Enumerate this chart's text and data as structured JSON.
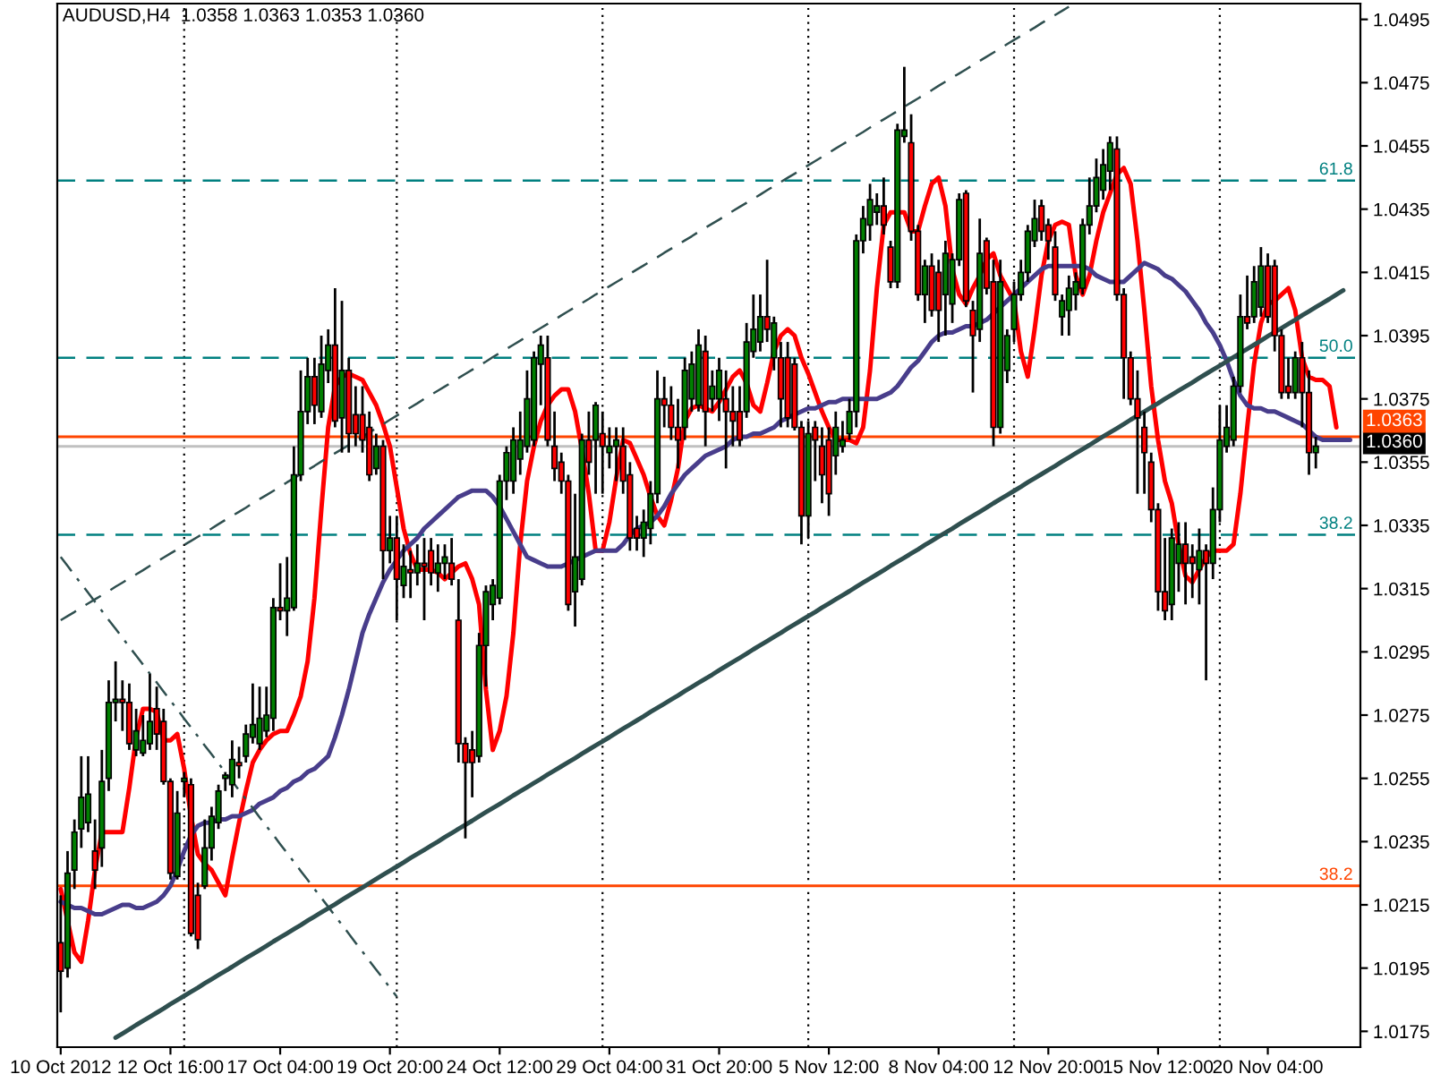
{
  "chart_data": {
    "type": "candlestick",
    "title": "AUDUSD,H4  1.0358 1.0363 1.0353 1.0360",
    "categories": [
      "10 Oct 2012",
      null,
      null,
      null,
      null,
      null,
      null,
      null,
      null,
      null,
      null,
      null,
      null,
      null,
      null,
      null,
      "12 Oct 16:00",
      null,
      null,
      null,
      null,
      null,
      null,
      null,
      null,
      null,
      null,
      null,
      null,
      null,
      null,
      null,
      "17 Oct 04:00",
      null,
      null,
      null,
      null,
      null,
      null,
      null,
      null,
      null,
      null,
      null,
      null,
      null,
      null,
      null,
      "19 Oct 20:00",
      null,
      null,
      null,
      null,
      null,
      null,
      null,
      null,
      null,
      null,
      null,
      null,
      null,
      null,
      null,
      "24 Oct 12:00",
      null,
      null,
      null,
      null,
      null,
      null,
      null,
      null,
      null,
      null,
      null,
      null,
      null,
      null,
      null,
      "29 Oct 04:00",
      null,
      null,
      null,
      null,
      null,
      null,
      null,
      null,
      null,
      null,
      null,
      null,
      null,
      null,
      null,
      "31 Oct 20:00",
      null,
      null,
      null,
      null,
      null,
      null,
      null,
      null,
      null,
      null,
      null,
      null,
      null,
      null,
      null,
      "5 Nov 12:00",
      null,
      null,
      null,
      null,
      null,
      null,
      null,
      null,
      null,
      null,
      null,
      null,
      null,
      null,
      null,
      "8 Nov 04:00",
      null,
      null,
      null,
      null,
      null,
      null,
      null,
      null,
      null,
      null,
      null,
      null,
      null,
      null,
      null,
      "12 Nov 20:00",
      null,
      null,
      null,
      null,
      null,
      null,
      null,
      null,
      null,
      null,
      null,
      null,
      null,
      null,
      null,
      "15 Nov 12:00",
      null,
      null,
      null,
      null,
      null,
      null,
      null,
      null,
      null,
      null,
      null,
      null,
      null,
      null,
      null,
      "20 Nov 04:00",
      null,
      null,
      null,
      null,
      null,
      null,
      null,
      null,
      null,
      null,
      null,
      null,
      null
    ],
    "ohlc": [
      [
        1.0203,
        1.0218,
        1.0181,
        1.0194
      ],
      [
        1.0195,
        1.0232,
        1.0192,
        1.0225
      ],
      [
        1.0226,
        1.0242,
        1.022,
        1.0238
      ],
      [
        1.0239,
        1.0262,
        1.0233,
        1.0249
      ],
      [
        1.0241,
        1.0262,
        1.0238,
        1.025
      ],
      [
        1.0232,
        1.0242,
        1.022,
        1.0226
      ],
      [
        1.0233,
        1.0264,
        1.0227,
        1.0254
      ],
      [
        1.0255,
        1.0286,
        1.0251,
        1.0279
      ],
      [
        1.0279,
        1.0292,
        1.0273,
        1.028
      ],
      [
        1.028,
        1.0286,
        1.027,
        1.0279
      ],
      [
        1.0279,
        1.0285,
        1.0264,
        1.0266
      ],
      [
        1.0264,
        1.0277,
        1.0262,
        1.027
      ],
      [
        1.0263,
        1.0275,
        1.0262,
        1.0267
      ],
      [
        1.0266,
        1.0288,
        1.0264,
        1.0273
      ],
      [
        1.0277,
        1.0284,
        1.0264,
        1.0269
      ],
      [
        1.0273,
        1.0277,
        1.0253,
        1.0254
      ],
      [
        1.0254,
        1.0255,
        1.0223,
        1.0225
      ],
      [
        1.0224,
        1.0251,
        1.0223,
        1.0244
      ],
      [
        1.0254,
        1.0257,
        1.0249,
        1.0255
      ],
      [
        1.0253,
        1.0255,
        1.0205,
        1.0206
      ],
      [
        1.0218,
        1.0222,
        1.0201,
        1.0204
      ],
      [
        1.0221,
        1.0242,
        1.022,
        1.0233
      ],
      [
        1.0233,
        1.0246,
        1.0229,
        1.0243
      ],
      [
        1.0241,
        1.0253,
        1.0239,
        1.0251
      ],
      [
        1.0255,
        1.0257,
        1.0251,
        1.0256
      ],
      [
        1.0253,
        1.0267,
        1.0249,
        1.0261
      ],
      [
        1.026,
        1.0265,
        1.0255,
        1.0259
      ],
      [
        1.0262,
        1.0272,
        1.026,
        1.0269
      ],
      [
        1.0268,
        1.0285,
        1.0266,
        1.0272
      ],
      [
        1.0266,
        1.0284,
        1.0264,
        1.0274
      ],
      [
        1.027,
        1.0284,
        1.0268,
        1.0275
      ],
      [
        1.0274,
        1.0312,
        1.027,
        1.0309
      ],
      [
        1.0309,
        1.0323,
        1.0305,
        1.0308
      ],
      [
        1.0308,
        1.0325,
        1.03,
        1.0312
      ],
      [
        1.0309,
        1.036,
        1.0308,
        1.0351
      ],
      [
        1.0351,
        1.0384,
        1.0349,
        1.0371
      ],
      [
        1.0371,
        1.0388,
        1.0367,
        1.0382
      ],
      [
        1.0382,
        1.0388,
        1.0367,
        1.0373
      ],
      [
        1.0371,
        1.0395,
        1.0369,
        1.0386
      ],
      [
        1.0384,
        1.0397,
        1.038,
        1.0392
      ],
      [
        1.0392,
        1.041,
        1.0366,
        1.0368
      ],
      [
        1.0369,
        1.0406,
        1.0358,
        1.0384
      ],
      [
        1.0384,
        1.0388,
        1.0358,
        1.0364
      ],
      [
        1.037,
        1.0379,
        1.036,
        1.0364
      ],
      [
        1.037,
        1.0379,
        1.0358,
        1.0362
      ],
      [
        1.0366,
        1.0371,
        1.0349,
        1.0351
      ],
      [
        1.0353,
        1.0364,
        1.0351,
        1.036
      ],
      [
        1.036,
        1.0362,
        1.0318,
        1.0327
      ],
      [
        1.0327,
        1.0338,
        1.0323,
        1.0331
      ],
      [
        1.0331,
        1.0338,
        1.0305,
        1.0318
      ],
      [
        1.0316,
        1.0329,
        1.0312,
        1.0322
      ],
      [
        1.0321,
        1.0327,
        1.0312,
        1.032
      ],
      [
        1.032,
        1.0329,
        1.0316,
        1.0323
      ],
      [
        1.0323,
        1.0331,
        1.0305,
        1.0322
      ],
      [
        1.0327,
        1.0331,
        1.0316,
        1.032
      ],
      [
        1.032,
        1.0329,
        1.0314,
        1.0323
      ],
      [
        1.0323,
        1.0329,
        1.0318,
        1.0325
      ],
      [
        1.0323,
        1.0331,
        1.0316,
        1.0318
      ],
      [
        1.0305,
        1.0318,
        1.026,
        1.0266
      ],
      [
        1.0266,
        1.0268,
        1.0236,
        1.026
      ],
      [
        1.0264,
        1.027,
        1.0249,
        1.026
      ],
      [
        1.0262,
        1.0301,
        1.026,
        1.0297
      ],
      [
        1.0297,
        1.0316,
        1.0284,
        1.0314
      ],
      [
        1.031,
        1.0318,
        1.0305,
        1.0316
      ],
      [
        1.0312,
        1.0351,
        1.031,
        1.0349
      ],
      [
        1.0349,
        1.036,
        1.0343,
        1.0358
      ],
      [
        1.0349,
        1.0366,
        1.0345,
        1.0362
      ],
      [
        1.0356,
        1.0371,
        1.0351,
        1.0362
      ],
      [
        1.036,
        1.0384,
        1.0358,
        1.0375
      ],
      [
        1.0362,
        1.039,
        1.036,
        1.0388
      ],
      [
        1.0386,
        1.0395,
        1.0373,
        1.0392
      ],
      [
        1.0388,
        1.0395,
        1.036,
        1.0362
      ],
      [
        1.036,
        1.0371,
        1.0349,
        1.0353
      ],
      [
        1.0355,
        1.0358,
        1.0345,
        1.0349
      ],
      [
        1.0349,
        1.0351,
        1.0308,
        1.031
      ],
      [
        1.0314,
        1.0345,
        1.0303,
        1.0325
      ],
      [
        1.0318,
        1.0364,
        1.0316,
        1.0362
      ],
      [
        1.0362,
        1.0371,
        1.0351,
        1.0355
      ],
      [
        1.0362,
        1.0374,
        1.0345,
        1.0373
      ],
      [
        1.0364,
        1.0371,
        1.0345,
        1.036
      ],
      [
        1.0358,
        1.0366,
        1.0353,
        1.036
      ],
      [
        1.036,
        1.0366,
        1.0349,
        1.0362
      ],
      [
        1.036,
        1.0366,
        1.0345,
        1.0349
      ],
      [
        1.0351,
        1.0355,
        1.0327,
        1.0331
      ],
      [
        1.0334,
        1.0338,
        1.0327,
        1.0331
      ],
      [
        1.0331,
        1.034,
        1.0325,
        1.0336
      ],
      [
        1.0334,
        1.0349,
        1.0329,
        1.0345
      ],
      [
        1.0345,
        1.0384,
        1.0342,
        1.0375
      ],
      [
        1.0375,
        1.0382,
        1.0366,
        1.0373
      ],
      [
        1.0373,
        1.0379,
        1.0362,
        1.0366
      ],
      [
        1.0366,
        1.0375,
        1.0353,
        1.0362
      ],
      [
        1.0366,
        1.0388,
        1.0362,
        1.0384
      ],
      [
        1.0375,
        1.039,
        1.0371,
        1.0386
      ],
      [
        1.0373,
        1.0397,
        1.0371,
        1.0392
      ],
      [
        1.039,
        1.0395,
        1.036,
        1.0371
      ],
      [
        1.0375,
        1.0384,
        1.0371,
        1.0379
      ],
      [
        1.0375,
        1.0388,
        1.0368,
        1.0384
      ],
      [
        1.0375,
        1.0384,
        1.0353,
        1.0371
      ],
      [
        1.0371,
        1.0379,
        1.036,
        1.0368
      ],
      [
        1.0371,
        1.0379,
        1.036,
        1.0362
      ],
      [
        1.0371,
        1.0399,
        1.0369,
        1.0393
      ],
      [
        1.039,
        1.0408,
        1.0388,
        1.0397
      ],
      [
        1.0393,
        1.0408,
        1.039,
        1.0401
      ],
      [
        1.0401,
        1.0419,
        1.0393,
        1.0397
      ],
      [
        1.0388,
        1.0401,
        1.0384,
        1.0399
      ],
      [
        1.0388,
        1.0393,
        1.0366,
        1.0375
      ],
      [
        1.0388,
        1.0393,
        1.0366,
        1.0369
      ],
      [
        1.0386,
        1.0388,
        1.0365,
        1.0366
      ],
      [
        1.0366,
        1.0368,
        1.0329,
        1.0338
      ],
      [
        1.0338,
        1.0368,
        1.0331,
        1.0364
      ],
      [
        1.0366,
        1.0368,
        1.0349,
        1.0362
      ],
      [
        1.036,
        1.0366,
        1.0342,
        1.0351
      ],
      [
        1.0362,
        1.0366,
        1.0338,
        1.0345
      ],
      [
        1.0357,
        1.0371,
        1.0351,
        1.0366
      ],
      [
        1.036,
        1.0368,
        1.0358,
        1.0362
      ],
      [
        1.0364,
        1.0375,
        1.0362,
        1.0371
      ],
      [
        1.0371,
        1.0427,
        1.0366,
        1.0425
      ],
      [
        1.0425,
        1.0436,
        1.0421,
        1.0432
      ],
      [
        1.043,
        1.0443,
        1.0425,
        1.0438
      ],
      [
        1.0434,
        1.044,
        1.043,
        1.0436
      ],
      [
        1.0436,
        1.0445,
        1.0427,
        1.043
      ],
      [
        1.0423,
        1.0425,
        1.041,
        1.0412
      ],
      [
        1.0412,
        1.0462,
        1.041,
        1.046
      ],
      [
        1.0458,
        1.048,
        1.0456,
        1.046
      ],
      [
        1.0456,
        1.0465,
        1.0425,
        1.0428
      ],
      [
        1.0428,
        1.043,
        1.0406,
        1.0408
      ],
      [
        1.0408,
        1.0419,
        1.0399,
        1.0417
      ],
      [
        1.0417,
        1.0421,
        1.0401,
        1.0403
      ],
      [
        1.0415,
        1.0419,
        1.0393,
        1.0403
      ],
      [
        1.0408,
        1.0425,
        1.0395,
        1.0421
      ],
      [
        1.0405,
        1.0421,
        1.0399,
        1.0419
      ],
      [
        1.0419,
        1.044,
        1.0417,
        1.0438
      ],
      [
        1.044,
        1.0441,
        1.0404,
        1.0406
      ],
      [
        1.0403,
        1.0406,
        1.0377,
        1.0395
      ],
      [
        1.0397,
        1.0432,
        1.0393,
        1.0421
      ],
      [
        1.0425,
        1.0426,
        1.0408,
        1.041
      ],
      [
        1.0412,
        1.0419,
        1.036,
        1.0366
      ],
      [
        1.0366,
        1.0419,
        1.0364,
        1.0412
      ],
      [
        1.0384,
        1.0397,
        1.038,
        1.0395
      ],
      [
        1.0397,
        1.0412,
        1.0393,
        1.0408
      ],
      [
        1.0408,
        1.0419,
        1.0406,
        1.0415
      ],
      [
        1.0415,
        1.043,
        1.0412,
        1.0428
      ],
      [
        1.0425,
        1.0438,
        1.0423,
        1.0432
      ],
      [
        1.0436,
        1.0438,
        1.0425,
        1.0428
      ],
      [
        1.043,
        1.0432,
        1.0419,
        1.0425
      ],
      [
        1.0423,
        1.0428,
        1.0406,
        1.0408
      ],
      [
        1.0401,
        1.0408,
        1.0395,
        1.0406
      ],
      [
        1.0403,
        1.0414,
        1.0395,
        1.041
      ],
      [
        1.0408,
        1.0415,
        1.0403,
        1.0412
      ],
      [
        1.041,
        1.0432,
        1.0408,
        1.043
      ],
      [
        1.043,
        1.0445,
        1.0427,
        1.0436
      ],
      [
        1.0436,
        1.0451,
        1.0434,
        1.0445
      ],
      [
        1.0441,
        1.0454,
        1.0438,
        1.0449
      ],
      [
        1.0447,
        1.0458,
        1.0441,
        1.0456
      ],
      [
        1.0454,
        1.0458,
        1.0406,
        1.0408
      ],
      [
        1.0408,
        1.041,
        1.0375,
        1.0388
      ],
      [
        1.0388,
        1.039,
        1.0373,
        1.0375
      ],
      [
        1.0375,
        1.0384,
        1.0345,
        1.0369
      ],
      [
        1.0366,
        1.0371,
        1.0345,
        1.0358
      ],
      [
        1.0355,
        1.0358,
        1.0336,
        1.034
      ],
      [
        1.034,
        1.0342,
        1.0308,
        1.0314
      ],
      [
        1.0314,
        1.0331,
        1.0305,
        1.0308
      ],
      [
        1.031,
        1.0334,
        1.0305,
        1.0331
      ],
      [
        1.0323,
        1.0336,
        1.0314,
        1.0329
      ],
      [
        1.0329,
        1.0336,
        1.031,
        1.0323
      ],
      [
        1.0325,
        1.0329,
        1.0312,
        1.0323
      ],
      [
        1.0321,
        1.0334,
        1.031,
        1.0327
      ],
      [
        1.0327,
        1.0329,
        1.0286,
        1.0323
      ],
      [
        1.0323,
        1.0347,
        1.0318,
        1.034
      ],
      [
        1.034,
        1.0373,
        1.0336,
        1.0362
      ],
      [
        1.036,
        1.0373,
        1.0358,
        1.0366
      ],
      [
        1.0362,
        1.0382,
        1.036,
        1.0379
      ],
      [
        1.0379,
        1.0408,
        1.0377,
        1.0401
      ],
      [
        1.0401,
        1.0414,
        1.0397,
        1.0399
      ],
      [
        1.0401,
        1.0417,
        1.0399,
        1.0412
      ],
      [
        1.0404,
        1.0423,
        1.0401,
        1.0417
      ],
      [
        1.0417,
        1.0421,
        1.0399,
        1.0401
      ],
      [
        1.0417,
        1.0419,
        1.039,
        1.0395
      ],
      [
        1.0395,
        1.0397,
        1.0375,
        1.0377
      ],
      [
        1.0379,
        1.0388,
        1.0375,
        1.0377
      ],
      [
        1.0377,
        1.039,
        1.0375,
        1.0388
      ],
      [
        1.0388,
        1.0393,
        1.0366,
        1.0377
      ],
      [
        1.0377,
        1.0384,
        1.0351,
        1.0358
      ],
      [
        1.0358,
        1.0363,
        1.0353,
        1.036
      ],
      null,
      null,
      null,
      null,
      null,
      null
    ],
    "series": [
      {
        "type": "line",
        "color": "#ff0000",
        "line_style": "solid",
        "values": [
          1.022,
          1.021,
          1.02,
          1.0197,
          1.021,
          1.0226,
          1.0238,
          1.0238,
          1.0238,
          1.0238,
          1.0252,
          1.0268,
          1.0277,
          1.0277,
          1.0276,
          1.0267,
          1.0267,
          1.0269,
          1.0258,
          1.0243,
          1.0231,
          1.0228,
          1.0226,
          1.0222,
          1.0218,
          1.023,
          1.0241,
          1.0251,
          1.026,
          1.0264,
          1.0267,
          1.0269,
          1.027,
          1.027,
          1.0275,
          1.0281,
          1.0292,
          1.0312,
          1.034,
          1.0366,
          1.0379,
          1.0382,
          1.0383,
          1.0382,
          1.0381,
          1.0377,
          1.0373,
          1.0367,
          1.036,
          1.0347,
          1.0334,
          1.0326,
          1.0321,
          1.0321,
          1.0321,
          1.032,
          1.0318,
          1.032,
          1.0322,
          1.0323,
          1.0318,
          1.031,
          1.0283,
          1.0264,
          1.027,
          1.0281,
          1.0301,
          1.0329,
          1.0349,
          1.036,
          1.0368,
          1.0373,
          1.0376,
          1.0378,
          1.0378,
          1.0371,
          1.0359,
          1.0345,
          1.0327,
          1.0327,
          1.0336,
          1.035,
          1.0362,
          1.0361,
          1.0356,
          1.0351,
          1.0344,
          1.0338,
          1.0335,
          1.0343,
          1.0353,
          1.0368,
          1.0372,
          1.0373,
          1.0372,
          1.0371,
          1.0374,
          1.0378,
          1.0382,
          1.0384,
          1.038,
          1.0373,
          1.0371,
          1.038,
          1.039,
          1.0395,
          1.0397,
          1.0395,
          1.0388,
          1.0383,
          1.0377,
          1.0371,
          1.0366,
          1.0362,
          1.0362,
          1.0362,
          1.0361,
          1.0366,
          1.0384,
          1.041,
          1.043,
          1.0434,
          1.0434,
          1.0434,
          1.0428,
          1.0428,
          1.0436,
          1.0443,
          1.0445,
          1.0436,
          1.0416,
          1.0408,
          1.0405,
          1.041,
          1.0414,
          1.0419,
          1.0421,
          1.0414,
          1.041,
          1.0406,
          1.039,
          1.0382,
          1.0397,
          1.0414,
          1.0425,
          1.043,
          1.0431,
          1.043,
          1.0414,
          1.0408,
          1.0414,
          1.0425,
          1.0434,
          1.044,
          1.0446,
          1.0448,
          1.0443,
          1.0425,
          1.0403,
          1.0379,
          1.0362,
          1.0349,
          1.0342,
          1.0329,
          1.0319,
          1.0317,
          1.0321,
          1.0325,
          1.0327,
          1.0327,
          1.0327,
          1.0329,
          1.0345,
          1.0366,
          1.0386,
          1.0399,
          1.0405,
          1.0406,
          1.0408,
          1.041,
          1.0403,
          1.0388,
          1.0382,
          1.0381,
          1.0381,
          1.0379,
          1.0366,
          null,
          null,
          null
        ]
      },
      {
        "type": "line",
        "color": "#483d8b",
        "line_style": "solid",
        "values": [
          1.0216,
          1.0215,
          1.0214,
          1.0214,
          1.0213,
          1.0212,
          1.0212,
          1.0213,
          1.0214,
          1.0215,
          1.0215,
          1.0214,
          1.0214,
          1.0215,
          1.0216,
          1.0218,
          1.0221,
          1.0226,
          1.0232,
          1.0237,
          1.024,
          1.0241,
          1.0241,
          1.0242,
          1.0242,
          1.0243,
          1.0243,
          1.0244,
          1.0245,
          1.0247,
          1.0248,
          1.0249,
          1.0251,
          1.0252,
          1.0254,
          1.0255,
          1.0257,
          1.0258,
          1.026,
          1.0262,
          1.0268,
          1.0275,
          1.0283,
          1.0292,
          1.0301,
          1.0307,
          1.0312,
          1.0317,
          1.0321,
          1.0324,
          1.0327,
          1.0329,
          1.0331,
          1.0334,
          1.0336,
          1.0338,
          1.034,
          1.0342,
          1.0344,
          1.0345,
          1.0346,
          1.0346,
          1.0346,
          1.0344,
          1.0341,
          1.0337,
          1.0333,
          1.0329,
          1.0325,
          1.0324,
          1.0323,
          1.0322,
          1.0322,
          1.0322,
          1.0323,
          1.0324,
          1.0325,
          1.0326,
          1.0327,
          1.0327,
          1.0327,
          1.0327,
          1.0329,
          1.0332,
          1.0334,
          1.0335,
          1.0336,
          1.0338,
          1.0341,
          1.0345,
          1.0348,
          1.0351,
          1.0353,
          1.0355,
          1.0357,
          1.0358,
          1.0359,
          1.036,
          1.0362,
          1.0363,
          1.0363,
          1.0364,
          1.0364,
          1.0365,
          1.0366,
          1.0368,
          1.0369,
          1.037,
          1.0371,
          1.0372,
          1.0372,
          1.0373,
          1.0374,
          1.0374,
          1.0375,
          1.0375,
          1.0375,
          1.0375,
          1.0375,
          1.0375,
          1.0376,
          1.0377,
          1.0379,
          1.0382,
          1.0385,
          1.0387,
          1.039,
          1.0393,
          1.0395,
          1.0396,
          1.0396,
          1.0397,
          1.0398,
          1.0398,
          1.0399,
          1.04,
          1.0402,
          1.0404,
          1.0406,
          1.0408,
          1.041,
          1.0412,
          1.0414,
          1.0416,
          1.0417,
          1.0417,
          1.0417,
          1.0417,
          1.0417,
          1.0417,
          1.0416,
          1.0414,
          1.0413,
          1.0412,
          1.0412,
          1.0412,
          1.0414,
          1.0416,
          1.0418,
          1.0417,
          1.0416,
          1.0414,
          1.0413,
          1.0411,
          1.0409,
          1.0406,
          1.0403,
          1.0399,
          1.0396,
          1.0392,
          1.0387,
          1.0381,
          1.0376,
          1.0373,
          1.0372,
          1.0372,
          1.0371,
          1.0371,
          1.037,
          1.0369,
          1.0368,
          1.0367,
          1.0365,
          1.0363,
          1.0362,
          1.0362,
          1.0362,
          1.0362,
          1.0362,
          null
        ]
      },
      {
        "type": "line",
        "color": "#2f4f4f",
        "line_style": "solid",
        "values": [
          null,
          null,
          null,
          null,
          null,
          null,
          null,
          null,
          1.0173,
          1.01743,
          1.01756,
          1.0177,
          1.01783,
          1.01796,
          1.01809,
          1.01822,
          1.01836,
          1.01849,
          1.01862,
          1.01875,
          1.01888,
          1.01902,
          1.01915,
          1.01928,
          1.01941,
          1.01954,
          1.01968,
          1.01981,
          1.01994,
          1.02007,
          1.0202,
          1.02034,
          1.02047,
          1.0206,
          1.02073,
          1.02086,
          1.021,
          1.02113,
          1.02126,
          1.02139,
          1.02152,
          1.02166,
          1.02179,
          1.02192,
          1.02205,
          1.02218,
          1.02232,
          1.02245,
          1.02258,
          1.02271,
          1.02284,
          1.02298,
          1.02311,
          1.02324,
          1.02337,
          1.0235,
          1.02364,
          1.02377,
          1.0239,
          1.02403,
          1.02416,
          1.0243,
          1.02443,
          1.02456,
          1.02469,
          1.02482,
          1.02496,
          1.02509,
          1.02522,
          1.02535,
          1.02548,
          1.02562,
          1.02575,
          1.02588,
          1.02601,
          1.02614,
          1.02628,
          1.02641,
          1.02654,
          1.02667,
          1.0268,
          1.02694,
          1.02707,
          1.0272,
          1.02733,
          1.02746,
          1.0276,
          1.02773,
          1.02786,
          1.02799,
          1.02812,
          1.02826,
          1.02839,
          1.02852,
          1.02865,
          1.02878,
          1.02892,
          1.02905,
          1.02918,
          1.02931,
          1.02944,
          1.02958,
          1.02971,
          1.02984,
          1.02997,
          1.0301,
          1.03024,
          1.03037,
          1.0305,
          1.03063,
          1.03076,
          1.0309,
          1.03103,
          1.03116,
          1.03129,
          1.03142,
          1.03156,
          1.03169,
          1.03182,
          1.03195,
          1.03208,
          1.03222,
          1.03235,
          1.03248,
          1.03261,
          1.03274,
          1.03288,
          1.03301,
          1.03314,
          1.03327,
          1.0334,
          1.03354,
          1.03367,
          1.0338,
          1.03393,
          1.03406,
          1.0342,
          1.03433,
          1.03446,
          1.03459,
          1.03472,
          1.03486,
          1.03499,
          1.03512,
          1.03525,
          1.03538,
          1.03552,
          1.03565,
          1.03578,
          1.03591,
          1.03604,
          1.03618,
          1.03631,
          1.03644,
          1.03657,
          1.0367,
          1.03684,
          1.03697,
          1.0371,
          1.03723,
          1.03736,
          1.0375,
          1.03763,
          1.03776,
          1.03789,
          1.03802,
          1.03816,
          1.03829,
          1.03842,
          1.03855,
          1.03868,
          1.03882,
          1.03895,
          1.03908,
          1.03921,
          1.03934,
          1.03948,
          1.03961,
          1.03974,
          1.03987,
          1.04,
          1.04014,
          1.04027,
          1.0404,
          1.04053,
          1.04066,
          1.0408,
          1.04093,
          null,
          null
        ]
      },
      {
        "type": "line",
        "color": "#2f4f4f",
        "line_style": "dashed",
        "values": [
          1.0305,
          1.03063,
          1.03076,
          1.0309,
          1.03103,
          1.03116,
          1.03129,
          1.03142,
          1.03156,
          1.03169,
          1.03182,
          1.03195,
          1.03208,
          1.03222,
          1.03235,
          1.03248,
          1.03261,
          1.03274,
          1.03288,
          1.03301,
          1.03314,
          1.03327,
          1.0334,
          1.03354,
          1.03367,
          1.0338,
          1.03393,
          1.03406,
          1.0342,
          1.03433,
          1.03446,
          1.03459,
          1.03472,
          1.03486,
          1.03499,
          1.03512,
          1.03525,
          1.03538,
          1.03552,
          1.03565,
          1.03578,
          1.03591,
          1.03604,
          1.03618,
          1.03631,
          1.03644,
          1.03657,
          1.0367,
          1.03684,
          1.03697,
          1.0371,
          1.03723,
          1.03736,
          1.0375,
          1.03763,
          1.03776,
          1.03789,
          1.03802,
          1.03816,
          1.03829,
          1.03842,
          1.03855,
          1.03868,
          1.03882,
          1.03895,
          1.03908,
          1.03921,
          1.03934,
          1.03948,
          1.03961,
          1.03974,
          1.03987,
          1.04,
          1.04014,
          1.04027,
          1.0404,
          1.04053,
          1.04066,
          1.0408,
          1.04093,
          1.04106,
          1.04119,
          1.04132,
          1.04146,
          1.04159,
          1.04172,
          1.04185,
          1.04198,
          1.04212,
          1.04225,
          1.04238,
          1.04251,
          1.04264,
          1.04278,
          1.04291,
          1.04304,
          1.04317,
          1.0433,
          1.04344,
          1.04357,
          1.0437,
          1.04383,
          1.04396,
          1.0441,
          1.04423,
          1.04436,
          1.04449,
          1.04462,
          1.04476,
          1.04489,
          1.04502,
          1.04515,
          1.04528,
          1.04542,
          1.04555,
          1.04568,
          1.04581,
          1.04594,
          1.04608,
          1.04621,
          1.04634,
          1.04647,
          1.0466,
          1.04674,
          1.04687,
          1.047,
          1.04713,
          1.04726,
          1.0474,
          1.04753,
          1.04766,
          1.04779,
          1.04792,
          1.04806,
          1.04819,
          1.04832,
          1.04845,
          1.04858,
          1.04872,
          1.04885,
          1.04898,
          1.04911,
          1.04924,
          1.04938,
          1.04951,
          1.04964,
          1.04977,
          1.0499,
          null,
          null,
          null,
          null,
          null,
          null,
          null,
          null,
          null,
          null,
          null,
          null,
          null,
          null,
          null,
          null,
          null,
          null,
          null,
          null,
          null,
          null,
          null,
          null,
          null,
          null,
          null,
          null,
          null,
          null,
          null,
          null,
          null,
          null,
          null,
          null,
          null,
          null,
          null,
          null,
          null,
          null
        ]
      },
      {
        "type": "line",
        "color": "#2f4f4f",
        "line_style": "dashdot",
        "values": [
          1.0325,
          1.03222,
          1.03193,
          1.03165,
          1.03137,
          1.03108,
          1.0308,
          1.03051,
          1.03023,
          1.02995,
          1.02966,
          1.02938,
          1.0291,
          1.02881,
          1.02853,
          1.02824,
          1.02796,
          1.02768,
          1.02739,
          1.02711,
          1.02683,
          1.02654,
          1.02626,
          1.02598,
          1.02569,
          1.02541,
          1.02512,
          1.02484,
          1.02456,
          1.02427,
          1.02399,
          1.02371,
          1.02342,
          1.02314,
          1.02286,
          1.02257,
          1.02229,
          1.022,
          1.02172,
          1.02144,
          1.02115,
          1.02087,
          1.02059,
          1.0203,
          1.02002,
          1.01973,
          1.01945,
          1.01917,
          1.01888,
          1.0186,
          null,
          null,
          null,
          null,
          null,
          null,
          null,
          null,
          null,
          null,
          null,
          null,
          null,
          null,
          null,
          null,
          null,
          null,
          null,
          null,
          null,
          null,
          null,
          null,
          null,
          null,
          null,
          null,
          null,
          null,
          null,
          null,
          null,
          null,
          null,
          null,
          null,
          null,
          null,
          null,
          null,
          null,
          null,
          null,
          null,
          null,
          null,
          null,
          null,
          null,
          null,
          null,
          null,
          null,
          null,
          null,
          null,
          null,
          null,
          null,
          null,
          null,
          null,
          null,
          null,
          null,
          null,
          null,
          null,
          null,
          null,
          null,
          null,
          null,
          null,
          null,
          null,
          null,
          null,
          null,
          null,
          null,
          null,
          null,
          null,
          null,
          null,
          null,
          null,
          null,
          null,
          null,
          null,
          null,
          null,
          null,
          null,
          null,
          null,
          null,
          null,
          null,
          null,
          null,
          null,
          null,
          null,
          null,
          null,
          null,
          null,
          null,
          null,
          null,
          null,
          null,
          null,
          null,
          null,
          null,
          null,
          null,
          null,
          null,
          null,
          null,
          null,
          null,
          null,
          null,
          null,
          null,
          null,
          null,
          null,
          null,
          null,
          null,
          null,
          null
        ]
      }
    ],
    "ylim": [
      1.017,
      1.05
    ],
    "yticks": [
      1.0175,
      1.0195,
      1.0215,
      1.0235,
      1.0255,
      1.0275,
      1.0295,
      1.0315,
      1.0335,
      1.0355,
      1.0375,
      1.0395,
      1.0415,
      1.0435,
      1.0455,
      1.0475,
      1.0495
    ],
    "ref_lines": [
      {
        "axis": "y",
        "value": 1.0444,
        "color": "#008080",
        "line_style": "dashed"
      },
      {
        "axis": "y",
        "value": 1.0388,
        "color": "#008080",
        "line_style": "dashed"
      },
      {
        "axis": "y",
        "value": 1.0332,
        "color": "#008080",
        "line_style": "dashed"
      },
      {
        "axis": "y",
        "value": 1.0221,
        "color": "#ff4500",
        "line_style": "solid"
      },
      {
        "axis": "y",
        "value": 1.036,
        "label": "1.0360",
        "color": "#c0c0c0",
        "line_style": "solid"
      },
      {
        "axis": "y",
        "value": 1.0363,
        "label": "1.0363",
        "color": "#ff4500",
        "line_style": "solid"
      }
    ],
    "annotations": [
      {
        "text": "61.8",
        "y": 1.0444
      },
      {
        "text": "50.0",
        "y": 1.0388
      },
      {
        "text": "38.2",
        "y": 1.0332
      },
      {
        "text": "38.2",
        "y": 1.0221
      }
    ]
  }
}
